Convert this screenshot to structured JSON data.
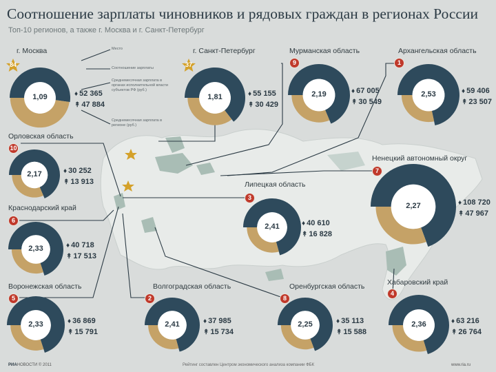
{
  "title": "Соотношение зарплаты чиновников и рядовых граждан в регионах России",
  "subtitle": "Топ-10 регионов, а также г. Москва и г. Санкт-Петербург",
  "legend": {
    "place": "Место",
    "ratio": "Соотношение зарплаты",
    "official_salary": "Среднемесячная зарплата в органах государственной власти",
    "official_salary_note": "Среднемесячная зарплата в органах исполнительной власти субъектов РФ (руб.)",
    "citizen_salary": "Среднемесячная зарплата в регионе (руб.)"
  },
  "colors": {
    "official": "#2e4a5c",
    "citizen": "#c5a267",
    "badge": "#c0392b",
    "star": "#d4a12a",
    "map": "#e8ebe9",
    "map_highlight": "#a9bdb5"
  },
  "chart_data": {
    "type": "pie",
    "title": "Соотношение зарплаты чиновников и рядовых граждан в регионах России",
    "regions": [
      {
        "name": "г. Москва",
        "rank": "84",
        "star": true,
        "ratio": "1,09",
        "official": "52 365",
        "citizen": "47 884",
        "official_value": 52365,
        "citizen_value": 47884
      },
      {
        "name": "г. Санкт-Петербург",
        "rank": "37",
        "star": true,
        "ratio": "1,81",
        "official": "55 155",
        "citizen": "30 429",
        "official_value": 55155,
        "citizen_value": 30429
      },
      {
        "name": "Мурманская область",
        "rank": "9",
        "star": false,
        "ratio": "2,19",
        "official": "67 005",
        "citizen": "30 549",
        "official_value": 67005,
        "citizen_value": 30549
      },
      {
        "name": "Архангельская область",
        "rank": "1",
        "star": false,
        "ratio": "2,53",
        "official": "59 406",
        "citizen": "23 507",
        "official_value": 59406,
        "citizen_value": 23507
      },
      {
        "name": "Орловская область",
        "rank": "10",
        "star": false,
        "ratio": "2,17",
        "official": "30 252",
        "citizen": "13 913",
        "official_value": 30252,
        "citizen_value": 13913
      },
      {
        "name": "Ненецкий автономный округ",
        "rank": "7",
        "star": false,
        "ratio": "2,27",
        "official": "108 720",
        "citizen": "47 967",
        "official_value": 108720,
        "citizen_value": 47967
      },
      {
        "name": "Липецкая область",
        "rank": "3",
        "star": false,
        "ratio": "2,41",
        "official": "40 610",
        "citizen": "16 828",
        "official_value": 40610,
        "citizen_value": 16828
      },
      {
        "name": "Краснодарский край",
        "rank": "6",
        "star": false,
        "ratio": "2,33",
        "official": "40 718",
        "citizen": "17 513",
        "official_value": 40718,
        "citizen_value": 17513
      },
      {
        "name": "Воронежская область",
        "rank": "5",
        "star": false,
        "ratio": "2,33",
        "official": "36 869",
        "citizen": "15 791",
        "official_value": 36869,
        "citizen_value": 15791
      },
      {
        "name": "Волгоградская область",
        "rank": "2",
        "star": false,
        "ratio": "2,41",
        "official": "37 985",
        "citizen": "15 734",
        "official_value": 37985,
        "citizen_value": 15734
      },
      {
        "name": "Оренбургская область",
        "rank": "8",
        "star": false,
        "ratio": "2,25",
        "official": "35 113",
        "citizen": "15 588",
        "official_value": 35113,
        "citizen_value": 15588
      },
      {
        "name": "Хабаровский край",
        "rank": "4",
        "star": false,
        "ratio": "2,36",
        "official": "63 216",
        "citizen": "26 764",
        "official_value": 63216,
        "citizen_value": 26764
      }
    ]
  },
  "footer": {
    "brand": "РИА",
    "brand_suffix": "НОВОСТИ © 2011",
    "source": "Рейтинг составлен Центром экономического анализа компании ФБК",
    "site": "www.ria.ru"
  }
}
